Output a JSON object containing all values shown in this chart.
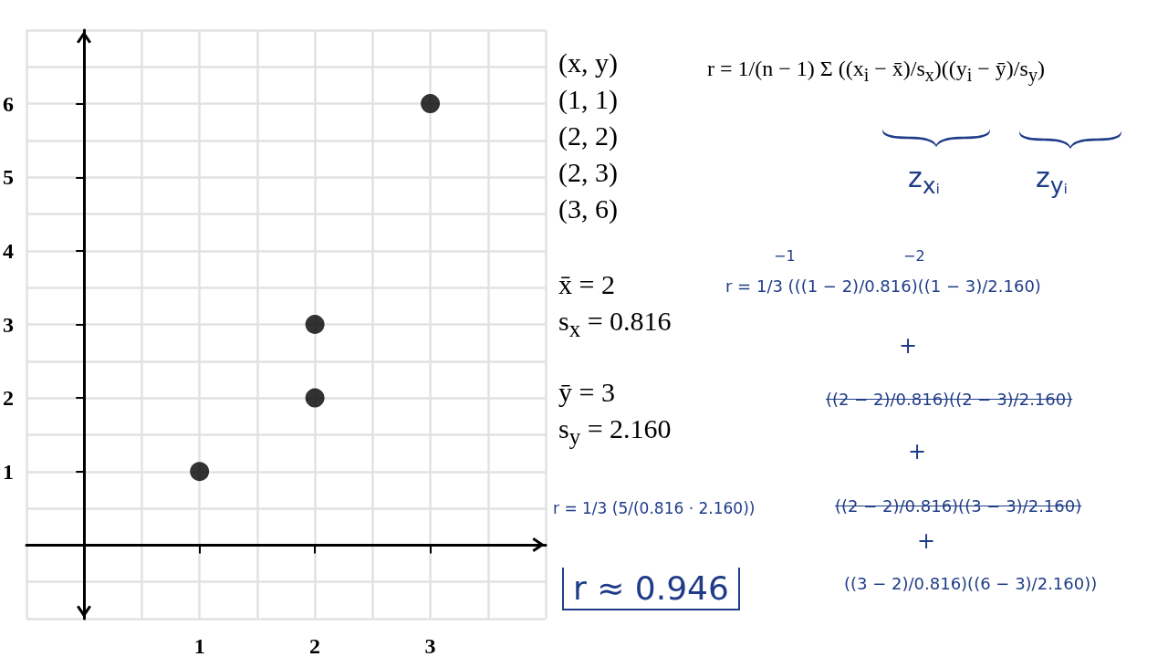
{
  "chart_data": {
    "type": "scatter",
    "x": [
      1,
      2,
      2,
      3
    ],
    "values": [
      1,
      2,
      3,
      6
    ],
    "color": "#000000",
    "marker": "circle",
    "xlim": [
      -0.5,
      4
    ],
    "ylim": [
      -1,
      7
    ],
    "xticks": [
      {
        "value": -0.5,
        "label": null
      },
      {
        "value": 0,
        "label": null
      },
      {
        "value": 0.5,
        "label": null
      },
      1,
      {
        "value": 1.5,
        "label": null
      },
      2,
      {
        "value": 2.5,
        "label": null
      },
      3,
      {
        "value": 3.5,
        "label": null
      },
      {
        "value": 4,
        "label": null
      }
    ],
    "yticks": [
      {
        "value": -1,
        "label": null
      },
      {
        "value": -0.5,
        "label": null
      },
      {
        "value": 0,
        "label": null
      },
      {
        "value": 0.5,
        "label": null
      },
      1,
      {
        "value": 1.5,
        "label": null
      },
      2,
      {
        "value": 2.5,
        "label": null
      },
      3,
      {
        "value": 3.5,
        "label": null
      },
      4,
      {
        "value": 4.5,
        "label": null
      },
      5,
      {
        "value": 5.5,
        "label": null
      },
      6,
      {
        "value": 6.5,
        "label": null
      },
      {
        "value": 7,
        "label": null
      }
    ],
    "grid": true,
    "annotations": [
      "(x, y)",
      "(1, 1)",
      "(2, 2)",
      "(2, 3)",
      "(3, 6)",
      "r = 1/(n − 1) Σ ((x$_{i}$ − x̄)/s$_{x}$)((y$_{i}$ − ȳ)/s$_{y}$)",
      "z$_{xᵢ}$",
      "z$_{yᵢ}$",
      "x̄ = 2",
      "s$_{x}$ = 0.816",
      "ȳ = 3",
      "s$_{y}$ = 2.160",
      "r = 1/3 (5/(0.816 · 2.160))",
      "r ≈ 0.946",
      "−1",
      "−2",
      "r = 1/3 (((1 − 2)/0.816)((1 − 3)/2.160)",
      "+",
      "((2 − 2)/0.816)((2 − 3)/2.160)",
      "+",
      "((2 − 2)/0.816)((3 − 3)/2.160)",
      "+",
      "((3 − 2)/0.816)((6 − 3)/2.160))"
    ]
  }
}
